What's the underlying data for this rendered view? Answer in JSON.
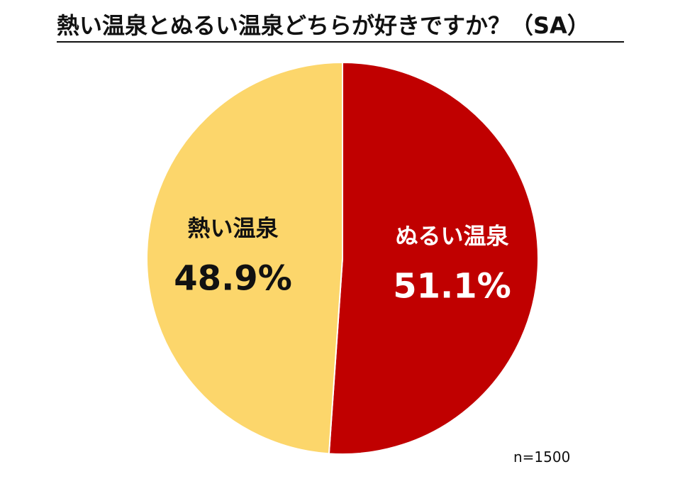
{
  "chart_data": {
    "type": "pie",
    "title": "熱い温泉とぬるい温泉どちらが好きですか？（SA）",
    "slices": [
      {
        "label": "ぬるい温泉",
        "value": 51.1,
        "display": "51.1%",
        "color": "#c00000",
        "text_color": "#ffffff"
      },
      {
        "label": "熱い温泉",
        "value": 48.9,
        "display": "48.9%",
        "color": "#fcd66b",
        "text_color": "#111111"
      }
    ],
    "start": "12 o'clock",
    "direction": "clockwise",
    "legend": "none",
    "note": "n=1500"
  }
}
